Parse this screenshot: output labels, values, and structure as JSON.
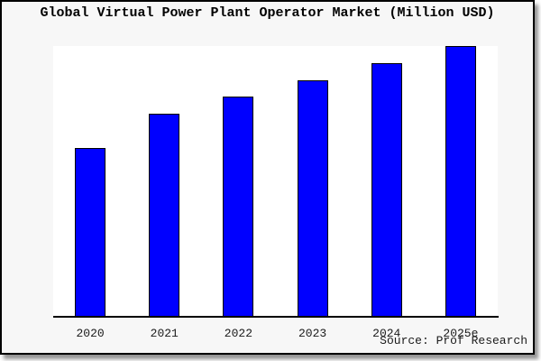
{
  "chart_data": {
    "type": "bar",
    "title": "Global Virtual Power Plant Operator Market (Million USD)",
    "categories": [
      "2020",
      "2021",
      "2022",
      "2023",
      "2024",
      "2025e"
    ],
    "values": [
      62.5,
      75,
      81.3,
      87.5,
      93.8,
      100
    ],
    "values_note": "y-axis has no tick labels; values estimated as percent of tallest bar (2025e = 100)",
    "xlabel": "",
    "ylabel": "",
    "ylim": [
      0,
      100
    ],
    "grid": false,
    "legend": "none",
    "bar_color": "#0000FF",
    "bar_border_color": "#000000",
    "source_note": "Source: Prof Research"
  },
  "colors": {
    "figure_bg": "#f7f7f7",
    "plot_bg": "#ffffff",
    "frame_border": "#000000",
    "text": "#1a1a1a"
  }
}
